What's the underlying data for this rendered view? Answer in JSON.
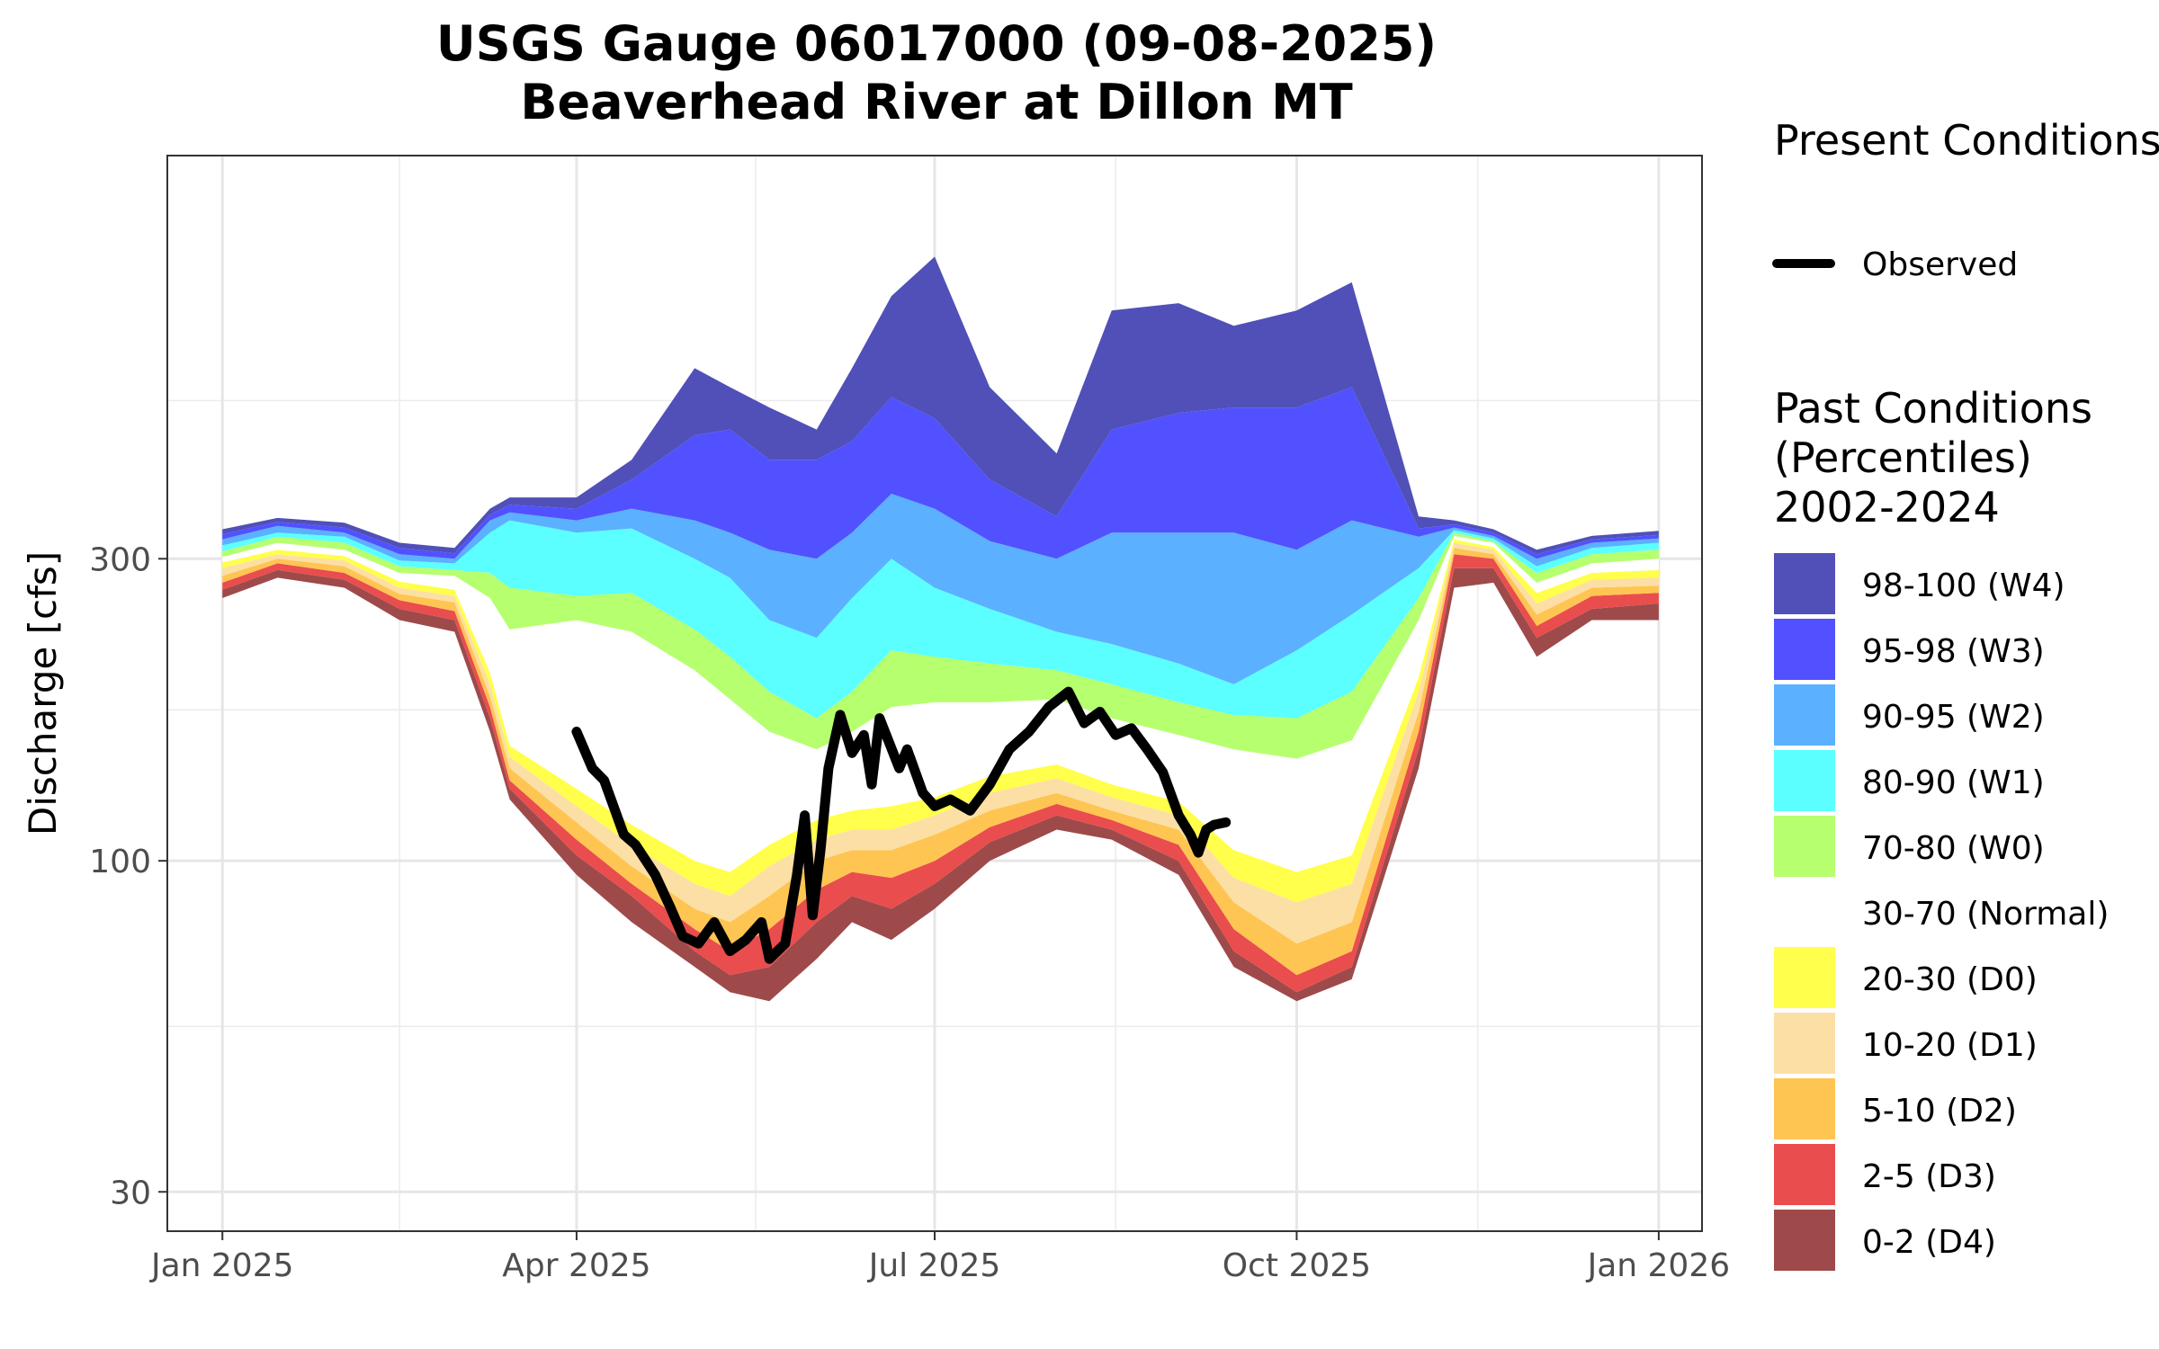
{
  "chart_data": {
    "type": "area",
    "title_line1": "USGS Gauge 06017000 (09-08-2025)",
    "title_line2": "Beaverhead River at Dillon MT",
    "ylabel": "Discharge [cfs]",
    "xlabel": "",
    "y_scale": "log",
    "ylim": [
      26,
      1300
    ],
    "xlim": [
      "2024-12-18",
      "2026-01-12"
    ],
    "y_ticks": [
      30,
      100,
      300
    ],
    "y_tick_labels": [
      "30",
      "100",
      "300"
    ],
    "x_ticks": [
      "2025-01-01",
      "2025-04-01",
      "2025-07-01",
      "2025-10-01",
      "2026-01-01"
    ],
    "x_tick_labels": [
      "Jan 2025",
      "Apr 2025",
      "Jul 2025",
      "Oct 2025",
      "Jan 2026"
    ],
    "grid": true,
    "legend_position": "right",
    "present_legend_title": "Present Conditions",
    "present_series": [
      {
        "name": "Observed",
        "color": "#000000",
        "x": [
          "2025-04-01",
          "2025-04-05",
          "2025-04-08",
          "2025-04-13",
          "2025-04-16",
          "2025-04-21",
          "2025-04-25",
          "2025-04-28",
          "2025-05-02",
          "2025-05-06",
          "2025-05-10",
          "2025-05-14",
          "2025-05-18",
          "2025-05-20",
          "2025-05-24",
          "2025-05-27",
          "2025-05-29",
          "2025-05-31",
          "2025-06-02",
          "2025-06-04",
          "2025-06-07",
          "2025-06-10",
          "2025-06-13",
          "2025-06-15",
          "2025-06-17",
          "2025-06-22",
          "2025-06-24",
          "2025-06-28",
          "2025-07-01",
          "2025-07-05",
          "2025-07-10",
          "2025-07-15",
          "2025-07-20",
          "2025-07-25",
          "2025-07-30",
          "2025-08-04",
          "2025-08-08",
          "2025-08-12",
          "2025-08-16",
          "2025-08-20",
          "2025-08-24",
          "2025-08-28",
          "2025-09-01",
          "2025-09-04",
          "2025-09-06",
          "2025-09-08",
          "2025-09-10",
          "2025-09-13"
        ],
        "y": [
          160,
          140,
          134,
          110,
          106,
          95,
          84,
          76,
          74,
          80,
          72,
          75,
          80,
          70,
          74,
          95,
          118,
          82,
          104,
          140,
          170,
          148,
          158,
          132,
          168,
          140,
          150,
          128,
          122,
          125,
          120,
          132,
          150,
          160,
          175,
          185,
          165,
          172,
          158,
          162,
          150,
          138,
          118,
          110,
          103,
          112,
          114,
          115
        ]
      }
    ],
    "past_legend_title_line1": "Past Conditions",
    "past_legend_title_line2": "(Percentiles)",
    "past_legend_title_line3": "2002-2024",
    "bands": [
      {
        "label": "98-100 (W4)",
        "color": "#5050b8"
      },
      {
        "label": "95-98 (W3)",
        "color": "#5151ff"
      },
      {
        "label": "90-95 (W2)",
        "color": "#5bb0ff"
      },
      {
        "label": "80-90 (W1)",
        "color": "#5bffff"
      },
      {
        "label": "70-80 (W0)",
        "color": "#b6ff6e"
      },
      {
        "label": "30-70 (Normal)",
        "color": "#ffffff"
      },
      {
        "label": "20-30 (D0)",
        "color": "#ffff4c"
      },
      {
        "label": "10-20 (D1)",
        "color": "#fcdfa5"
      },
      {
        "label": "5-10 (D2)",
        "color": "#ffc552"
      },
      {
        "label": "2-5 (D3)",
        "color": "#ea4d4d"
      },
      {
        "label": "0-2 (D4)",
        "color": "#9e4a4a"
      }
    ],
    "percentile_x": [
      "2025-01-01",
      "2025-01-15",
      "2025-02-01",
      "2025-02-15",
      "2025-03-01",
      "2025-03-10",
      "2025-03-15",
      "2025-04-01",
      "2025-04-15",
      "2025-05-01",
      "2025-05-10",
      "2025-05-20",
      "2025-06-01",
      "2025-06-10",
      "2025-06-20",
      "2025-07-01",
      "2025-07-15",
      "2025-08-01",
      "2025-08-15",
      "2025-09-01",
      "2025-09-15",
      "2025-10-01",
      "2025-10-15",
      "2025-11-01",
      "2025-11-10",
      "2025-11-20",
      "2025-12-01",
      "2025-12-15",
      "2026-01-01"
    ],
    "percentiles": {
      "p0": [
        260,
        280,
        270,
        240,
        230,
        160,
        125,
        95,
        80,
        68,
        62,
        60,
        70,
        80,
        75,
        84,
        100,
        112,
        108,
        95,
        68,
        60,
        65,
        140,
        270,
        275,
        210,
        240,
        240
      ],
      "p2": [
        268,
        288,
        278,
        250,
        240,
        168,
        130,
        102,
        88,
        72,
        66,
        68,
        80,
        88,
        84,
        92,
        107,
        118,
        112,
        100,
        72,
        62,
        68,
        150,
        290,
        290,
        225,
        250,
        255
      ],
      "p5": [
        275,
        295,
        285,
        258,
        248,
        175,
        134,
        108,
        92,
        78,
        72,
        78,
        90,
        96,
        94,
        100,
        113,
        123,
        116,
        106,
        78,
        66,
        72,
        160,
        305,
        300,
        235,
        262,
        265
      ],
      "p10": [
        282,
        300,
        292,
        264,
        256,
        182,
        140,
        115,
        98,
        84,
        80,
        88,
        100,
        104,
        104,
        110,
        120,
        128,
        120,
        112,
        86,
        74,
        80,
        172,
        312,
        305,
        245,
        270,
        272
      ],
      "p20": [
        290,
        305,
        298,
        270,
        262,
        190,
        146,
        122,
        106,
        92,
        88,
        98,
        108,
        112,
        112,
        118,
        128,
        135,
        126,
        118,
        94,
        86,
        92,
        185,
        318,
        310,
        255,
        278,
        280
      ],
      "p30": [
        296,
        310,
        303,
        276,
        268,
        198,
        152,
        130,
        114,
        100,
        96,
        106,
        116,
        120,
        122,
        126,
        136,
        142,
        132,
        124,
        104,
        96,
        102,
        195,
        322,
        313,
        265,
        285,
        288
      ],
      "p70": [
        302,
        318,
        310,
        285,
        282,
        260,
        232,
        240,
        230,
        200,
        180,
        160,
        150,
        160,
        175,
        178,
        178,
        180,
        168,
        158,
        150,
        145,
        155,
        240,
        326,
        318,
        275,
        295,
        300
      ],
      "p80": [
        308,
        325,
        318,
        292,
        288,
        285,
        270,
        262,
        265,
        232,
        210,
        185,
        168,
        185,
        215,
        210,
        205,
        200,
        190,
        178,
        170,
        168,
        185,
        260,
        330,
        320,
        285,
        305,
        310
      ],
      "p90": [
        315,
        330,
        325,
        298,
        295,
        330,
        345,
        330,
        335,
        300,
        280,
        240,
        225,
        260,
        300,
        270,
        250,
        230,
        220,
        205,
        190,
        215,
        245,
        290,
        333,
        323,
        292,
        312,
        318
      ],
      "p95": [
        322,
        338,
        330,
        305,
        300,
        345,
        355,
        345,
        360,
        345,
        330,
        310,
        300,
        330,
        380,
        360,
        320,
        300,
        330,
        330,
        330,
        310,
        345,
        325,
        336,
        326,
        300,
        318,
        323
      ],
      "p98": [
        328,
        343,
        336,
        312,
        306,
        352,
        365,
        360,
        400,
        470,
        480,
        430,
        430,
        460,
        540,
        500,
        400,
        350,
        480,
        510,
        520,
        520,
        560,
        335,
        340,
        330,
        305,
        322,
        327
      ],
      "p100": [
        334,
        348,
        342,
        318,
        312,
        360,
        375,
        375,
        430,
        600,
        560,
        520,
        480,
        600,
        780,
        900,
        560,
        440,
        740,
        760,
        700,
        740,
        820,
        350,
        345,
        334,
        310,
        326,
        332
      ]
    }
  }
}
